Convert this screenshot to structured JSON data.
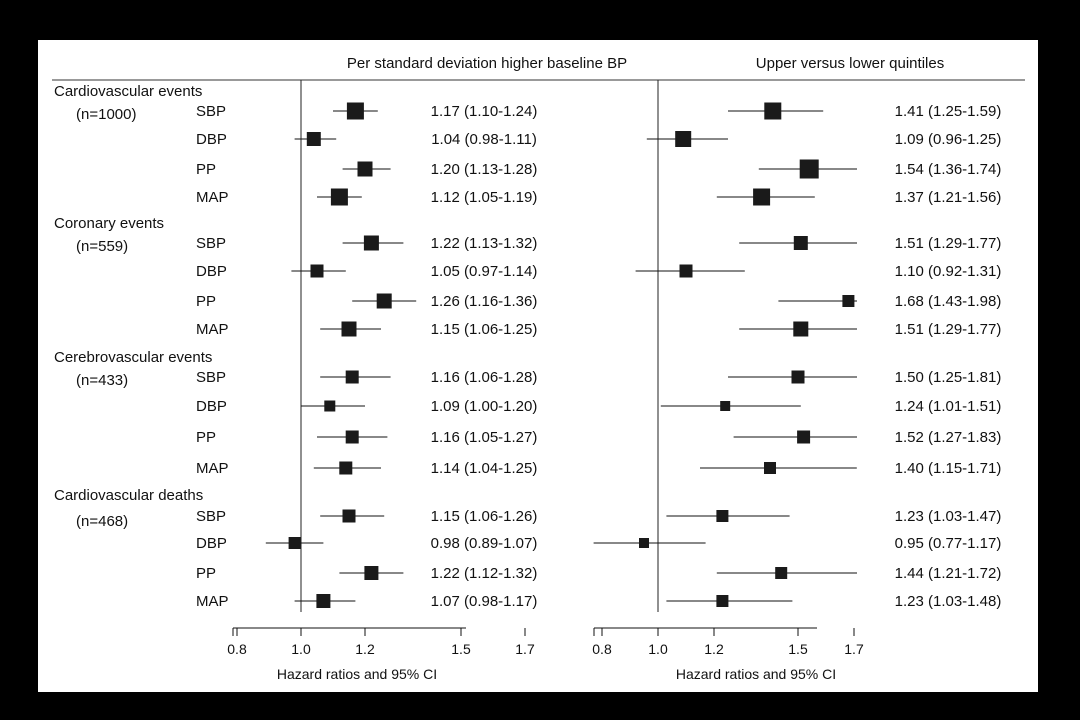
{
  "chart_data": {
    "type": "forest",
    "panels": [
      {
        "header": "Per standard deviation higher baseline BP",
        "xlabel": "Hazard ratios and 95% CI",
        "ticks": [
          "0.8",
          "1.0",
          "1.2",
          "1.5",
          "1.7"
        ],
        "xlim": [
          0.8,
          1.7
        ],
        "reference": 1.0,
        "groups": [
          {
            "label": "Cardiovascular events",
            "n": "(n=1000)",
            "rows": [
              {
                "var": "SBP",
                "hr": 1.17,
                "lo": 1.1,
                "hi": 1.24,
                "text": "1.17 (1.10-1.24)",
                "box": 17
              },
              {
                "var": "DBP",
                "hr": 1.04,
                "lo": 0.98,
                "hi": 1.11,
                "text": "1.04 (0.98-1.11)",
                "box": 14
              },
              {
                "var": "PP",
                "hr": 1.2,
                "lo": 1.13,
                "hi": 1.28,
                "text": "1.20 (1.13-1.28)",
                "box": 15
              },
              {
                "var": "MAP",
                "hr": 1.12,
                "lo": 1.05,
                "hi": 1.19,
                "text": "1.12 (1.05-1.19)",
                "box": 17
              }
            ]
          },
          {
            "label": "Coronary events",
            "n": "(n=559)",
            "rows": [
              {
                "var": "SBP",
                "hr": 1.22,
                "lo": 1.13,
                "hi": 1.32,
                "text": "1.22 (1.13-1.32)",
                "box": 15
              },
              {
                "var": "DBP",
                "hr": 1.05,
                "lo": 0.97,
                "hi": 1.14,
                "text": "1.05 (0.97-1.14)",
                "box": 13
              },
              {
                "var": "PP",
                "hr": 1.26,
                "lo": 1.16,
                "hi": 1.36,
                "text": "1.26 (1.16-1.36)",
                "box": 15
              },
              {
                "var": "MAP",
                "hr": 1.15,
                "lo": 1.06,
                "hi": 1.25,
                "text": "1.15 (1.06-1.25)",
                "box": 15
              }
            ]
          },
          {
            "label": "Cerebrovascular events",
            "n": "(n=433)",
            "rows": [
              {
                "var": "SBP",
                "hr": 1.16,
                "lo": 1.06,
                "hi": 1.28,
                "text": "1.16 (1.06-1.28)",
                "box": 13
              },
              {
                "var": "DBP",
                "hr": 1.09,
                "lo": 1.0,
                "hi": 1.2,
                "text": "1.09 (1.00-1.20)",
                "box": 11
              },
              {
                "var": "PP",
                "hr": 1.16,
                "lo": 1.05,
                "hi": 1.27,
                "text": "1.16 (1.05-1.27)",
                "box": 13
              },
              {
                "var": "MAP",
                "hr": 1.14,
                "lo": 1.04,
                "hi": 1.25,
                "text": "1.14 (1.04-1.25)",
                "box": 13
              }
            ]
          },
          {
            "label": "Cardiovascular deaths",
            "n": "(n=468)",
            "rows": [
              {
                "var": "SBP",
                "hr": 1.15,
                "lo": 1.06,
                "hi": 1.26,
                "text": "1.15 (1.06-1.26)",
                "box": 13
              },
              {
                "var": "DBP",
                "hr": 0.98,
                "lo": 0.89,
                "hi": 1.07,
                "text": "0.98 (0.89-1.07)",
                "box": 12
              },
              {
                "var": "PP",
                "hr": 1.22,
                "lo": 1.12,
                "hi": 1.32,
                "text": "1.22 (1.12-1.32)",
                "box": 14
              },
              {
                "var": "MAP",
                "hr": 1.07,
                "lo": 0.98,
                "hi": 1.17,
                "text": "1.07 (0.98-1.17)",
                "box": 14
              }
            ]
          }
        ]
      },
      {
        "header": "Upper versus lower quintiles",
        "xlabel": "Hazard ratios and 95% CI",
        "ticks": [
          "0.8",
          "1.0",
          "1.2",
          "1.5",
          "1.7"
        ],
        "xlim": [
          0.8,
          1.7
        ],
        "reference": 1.0,
        "groups": [
          {
            "rows": [
              {
                "var": "SBP",
                "hr": 1.41,
                "lo": 1.25,
                "hi": 1.59,
                "text": "1.41 (1.25-1.59)",
                "box": 17
              },
              {
                "var": "DBP",
                "hr": 1.09,
                "lo": 0.96,
                "hi": 1.25,
                "text": "1.09 (0.96-1.25)",
                "box": 16
              },
              {
                "var": "PP",
                "hr": 1.54,
                "lo": 1.36,
                "hi": 1.74,
                "text": "1.54 (1.36-1.74)",
                "box": 19
              },
              {
                "var": "MAP",
                "hr": 1.37,
                "lo": 1.21,
                "hi": 1.56,
                "text": "1.37 (1.21-1.56)",
                "box": 17
              }
            ]
          },
          {
            "rows": [
              {
                "var": "SBP",
                "hr": 1.51,
                "lo": 1.29,
                "hi": 1.77,
                "text": "1.51 (1.29-1.77)",
                "box": 14
              },
              {
                "var": "DBP",
                "hr": 1.1,
                "lo": 0.92,
                "hi": 1.31,
                "text": "1.10 (0.92-1.31)",
                "box": 13
              },
              {
                "var": "PP",
                "hr": 1.68,
                "lo": 1.43,
                "hi": 1.98,
                "text": "1.68 (1.43-1.98)",
                "box": 12
              },
              {
                "var": "MAP",
                "hr": 1.51,
                "lo": 1.29,
                "hi": 1.77,
                "text": "1.51 (1.29-1.77)",
                "box": 15
              }
            ]
          },
          {
            "rows": [
              {
                "var": "SBP",
                "hr": 1.5,
                "lo": 1.25,
                "hi": 1.81,
                "text": "1.50 (1.25-1.81)",
                "box": 13
              },
              {
                "var": "DBP",
                "hr": 1.24,
                "lo": 1.01,
                "hi": 1.51,
                "text": "1.24 (1.01-1.51)",
                "box": 10
              },
              {
                "var": "PP",
                "hr": 1.52,
                "lo": 1.27,
                "hi": 1.83,
                "text": "1.52 (1.27-1.83)",
                "box": 13
              },
              {
                "var": "MAP",
                "hr": 1.4,
                "lo": 1.15,
                "hi": 1.71,
                "text": "1.40 (1.15-1.71)",
                "box": 12
              }
            ]
          },
          {
            "rows": [
              {
                "var": "SBP",
                "hr": 1.23,
                "lo": 1.03,
                "hi": 1.47,
                "text": "1.23 (1.03-1.47)",
                "box": 12
              },
              {
                "var": "DBP",
                "hr": 0.95,
                "lo": 0.77,
                "hi": 1.17,
                "text": "0.95 (0.77-1.17)",
                "box": 10
              },
              {
                "var": "PP",
                "hr": 1.44,
                "lo": 1.21,
                "hi": 1.72,
                "text": "1.44 (1.21-1.72)",
                "box": 12
              },
              {
                "var": "MAP",
                "hr": 1.23,
                "lo": 1.03,
                "hi": 1.48,
                "text": "1.23 (1.03-1.48)",
                "box": 12
              }
            ]
          }
        ]
      }
    ]
  }
}
